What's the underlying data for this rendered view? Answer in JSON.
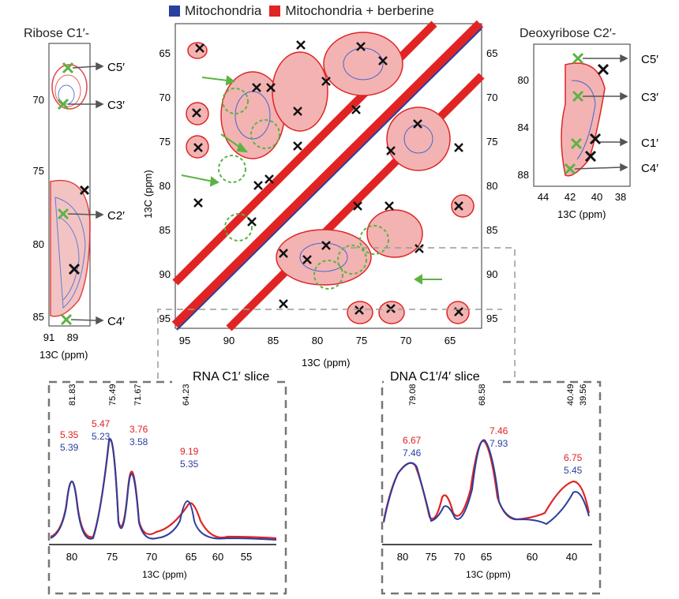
{
  "legend": [
    {
      "label": "Mitochondria",
      "color": "#2b3f9e"
    },
    {
      "label": "Mitochondria + berberine",
      "color": "#e02424"
    }
  ],
  "left_panel": {
    "title": "Ribose C1′-",
    "y_ticks": [
      "70",
      "75",
      "80",
      "85"
    ],
    "x_ticks": [
      "91",
      "89"
    ],
    "x_label": "13C (ppm)",
    "annotations": [
      "C5′",
      "C3′",
      "C2′",
      "C4′"
    ]
  },
  "center_panel": {
    "y_label": "13C (ppm)",
    "x_label": "13C (ppm)",
    "left_ticks": [
      "65",
      "70",
      "75",
      "80",
      "85",
      "90",
      "95"
    ],
    "right_ticks": [
      "65",
      "70",
      "75",
      "80",
      "85",
      "90",
      "95"
    ],
    "x_ticks": [
      "95",
      "90",
      "85",
      "80",
      "75",
      "70",
      "65"
    ]
  },
  "right_panel": {
    "title": "Deoxyribose C2′-",
    "y_ticks": [
      "80",
      "84",
      "88"
    ],
    "x_ticks": [
      "44",
      "42",
      "40",
      "38"
    ],
    "x_label": "13C (ppm)",
    "annotations": [
      "C5′",
      "C3′",
      "C1′",
      "C4′"
    ]
  },
  "rna_slice": {
    "title": "RNA C1′ slice",
    "peak_positions": [
      "81.83",
      "75.49",
      "71.67",
      "64.23"
    ],
    "red_values": [
      "5.35",
      "5.47",
      "3.76",
      "9.19"
    ],
    "blue_values": [
      "5.39",
      "5.23",
      "3.58",
      "5.35"
    ],
    "x_ticks": [
      "80",
      "75",
      "70",
      "65",
      "60",
      "55"
    ],
    "x_label": "13C (ppm)"
  },
  "dna_slice": {
    "title": "DNA C1′/4′ slice",
    "peak_positions": [
      "79.08",
      "68.58",
      "40.49",
      "39.56"
    ],
    "red_values": [
      "6.67",
      "7.46",
      "6.75"
    ],
    "blue_values": [
      "7.46",
      "7.93",
      "5.45"
    ],
    "x_ticks": [
      "80",
      "75",
      "70",
      "65",
      "60",
      "40"
    ],
    "x_label": "13C (ppm)"
  }
}
